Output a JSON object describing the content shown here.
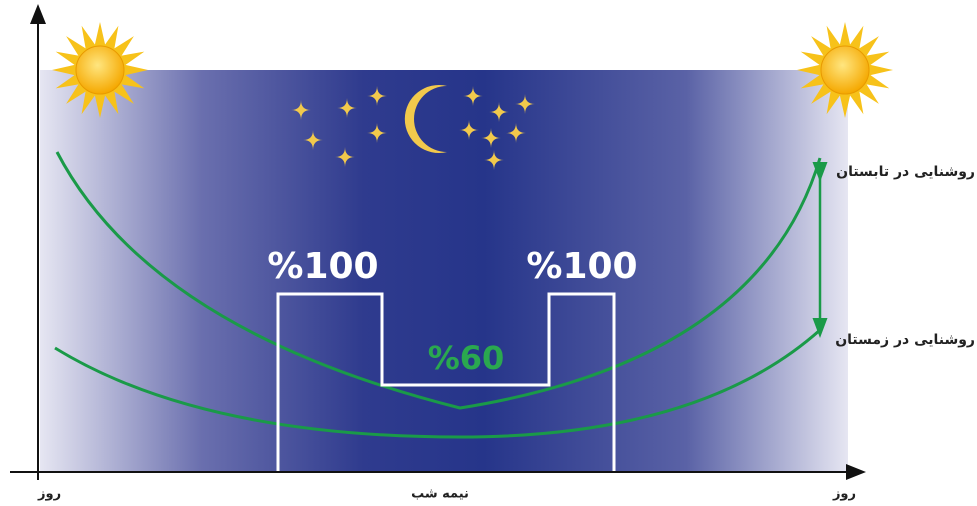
{
  "levels": {
    "high_left": "%100",
    "high_right": "%100",
    "dimmed": "%60"
  },
  "curves": {
    "summer": "روشنایی در تابستان",
    "winter": "روشنایی در زمستان"
  },
  "x_axis": {
    "left": "روز",
    "middle": "نیمه شب",
    "right": "روز"
  }
}
